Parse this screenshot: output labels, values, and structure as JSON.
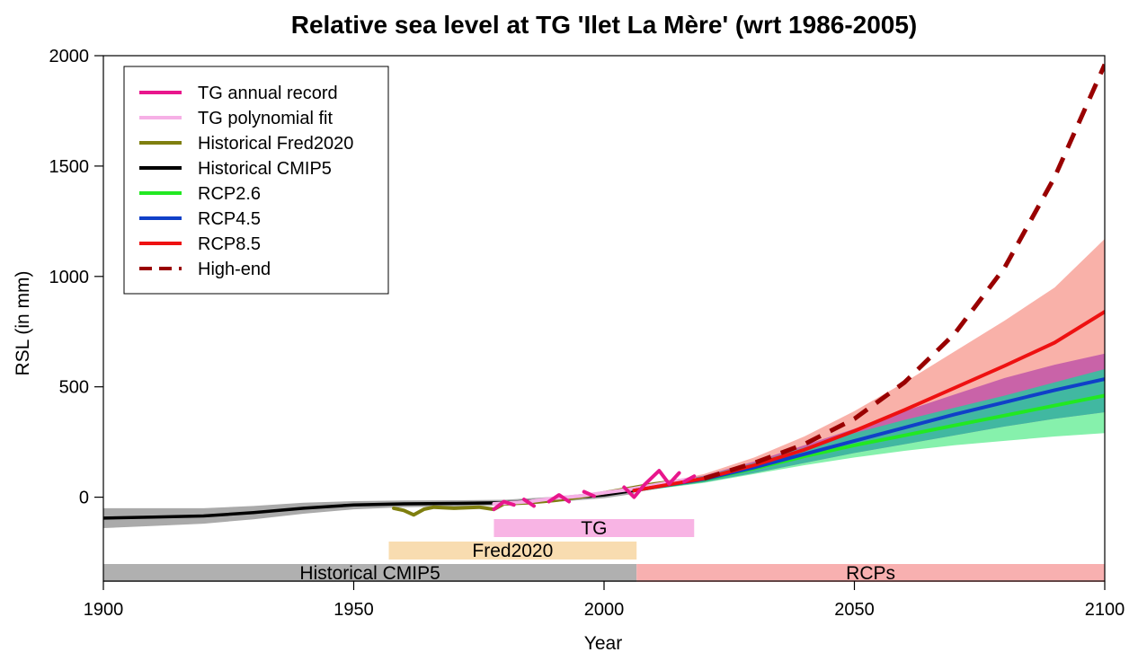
{
  "chart_data": {
    "type": "line",
    "title": "Relative sea level at TG 'Ilet La Mère' (wrt 1986-2005)",
    "xlabel": "Year",
    "ylabel": "RSL (in mm)",
    "xlim": [
      1900,
      2100
    ],
    "ylim": [
      -380,
      2000
    ],
    "x_ticks": [
      1900,
      1950,
      2000,
      2050,
      2100
    ],
    "y_ticks": [
      0,
      500,
      1000,
      1500,
      2000
    ],
    "legend_position": "top-left",
    "grid": false,
    "legend": [
      {
        "label": "TG annual record",
        "color": "#e8168c",
        "style": "solid"
      },
      {
        "label": "TG polynomial fit",
        "color": "#f6b0e6",
        "style": "solid"
      },
      {
        "label": "Historical Fred2020",
        "color": "#7f7f0f",
        "style": "solid"
      },
      {
        "label": "Historical CMIP5",
        "color": "#000000",
        "style": "solid"
      },
      {
        "label": "RCP2.6",
        "color": "#22e822",
        "style": "solid"
      },
      {
        "label": "RCP4.5",
        "color": "#1040c8",
        "style": "solid"
      },
      {
        "label": "RCP8.5",
        "color": "#ee1111",
        "style": "solid"
      },
      {
        "label": "High-end",
        "color": "#990000",
        "style": "dashed"
      }
    ],
    "series": [
      {
        "name": "Historical CMIP5",
        "x": [
          1900,
          1910,
          1920,
          1930,
          1940,
          1950,
          1960,
          1970,
          1980,
          1990,
          2000,
          2006
        ],
        "y": [
          -95,
          -90,
          -85,
          -70,
          -50,
          -35,
          -30,
          -28,
          -25,
          -10,
          10,
          30
        ],
        "band_lower": [
          -140,
          -130,
          -120,
          -100,
          -75,
          -55,
          -45,
          -42,
          -38,
          -22,
          -5,
          15
        ],
        "band_upper": [
          -50,
          -50,
          -50,
          -40,
          -25,
          -18,
          -15,
          -14,
          -12,
          2,
          25,
          45
        ]
      },
      {
        "name": "Historical Fred2020",
        "x": [
          1958,
          1960,
          1962,
          1964,
          1966,
          1970,
          1975,
          1978,
          1980,
          1985,
          1990,
          1995,
          2000,
          2005,
          2010,
          2015
        ],
        "y": [
          -50,
          -60,
          -80,
          -55,
          -45,
          -50,
          -45,
          -55,
          -30,
          -25,
          -15,
          0,
          20,
          40,
          60,
          75
        ]
      },
      {
        "name": "TG polynomial fit",
        "x": [
          1978,
          1985,
          1990,
          1995,
          2000,
          2005,
          2010,
          2015,
          2018
        ],
        "y": [
          -30,
          -20,
          -5,
          5,
          20,
          35,
          55,
          75,
          85
        ]
      },
      {
        "name": "TG annual record",
        "segments": [
          {
            "x": [
              1978,
              1980,
              1982
            ],
            "y": [
              -55,
              -20,
              -35
            ]
          },
          {
            "x": [
              1984,
              1986
            ],
            "y": [
              -10,
              -40
            ]
          },
          {
            "x": [
              1989,
              1991,
              1993
            ],
            "y": [
              -20,
              10,
              -20
            ]
          },
          {
            "x": [
              1996,
              1998
            ],
            "y": [
              25,
              5
            ]
          },
          {
            "x": [
              2004,
              2006,
              2008,
              2011,
              2013,
              2015
            ],
            "y": [
              45,
              0,
              55,
              120,
              60,
              110
            ]
          },
          {
            "x": [
              2016,
              2018
            ],
            "y": [
              70,
              95
            ]
          }
        ]
      },
      {
        "name": "RCP2.6",
        "x": [
          2006,
          2020,
          2030,
          2040,
          2050,
          2060,
          2070,
          2080,
          2090,
          2100
        ],
        "y": [
          30,
          80,
          130,
          185,
          235,
          280,
          325,
          370,
          415,
          460
        ],
        "band_lower": [
          25,
          65,
          105,
          145,
          180,
          210,
          235,
          255,
          275,
          290
        ],
        "band_upper": [
          40,
          95,
          155,
          225,
          290,
          350,
          405,
          460,
          520,
          580
        ]
      },
      {
        "name": "RCP4.5",
        "x": [
          2006,
          2020,
          2030,
          2040,
          2050,
          2060,
          2070,
          2080,
          2090,
          2100
        ],
        "y": [
          30,
          82,
          135,
          195,
          255,
          315,
          375,
          430,
          485,
          535
        ],
        "band_lower": [
          25,
          68,
          110,
          155,
          200,
          240,
          280,
          320,
          355,
          385
        ],
        "band_upper": [
          40,
          98,
          162,
          235,
          310,
          390,
          465,
          540,
          600,
          650
        ]
      },
      {
        "name": "RCP8.5",
        "x": [
          2006,
          2020,
          2030,
          2040,
          2050,
          2060,
          2070,
          2080,
          2090,
          2100
        ],
        "y": [
          30,
          85,
          145,
          215,
          300,
          395,
          495,
          595,
          700,
          840
        ],
        "band_lower": [
          25,
          70,
          115,
          165,
          225,
          290,
          355,
          420,
          490,
          560
        ],
        "band_upper": [
          40,
          105,
          180,
          275,
          390,
          520,
          660,
          800,
          950,
          1170
        ]
      },
      {
        "name": "High-end",
        "x": [
          2020,
          2030,
          2040,
          2050,
          2060,
          2070,
          2080,
          2090,
          2100
        ],
        "y": [
          85,
          155,
          240,
          355,
          520,
          740,
          1040,
          1450,
          1960
        ]
      }
    ],
    "band_colors": {
      "Historical CMIP5": "#aaaaaa",
      "RCP2.6": "#80f0a8",
      "RCP4.5": "#b84aa8",
      "RCP8.5": "#f8a8a0",
      "overlap": "#2ec4a0"
    },
    "periods": [
      {
        "label": "TG",
        "x_start": 1978,
        "x_end": 2018,
        "color": "#f8b4e4",
        "row": 1
      },
      {
        "label": "Fred2020",
        "x_start": 1957,
        "x_end": 2006.5,
        "color": "#f8dcb0",
        "row": 2
      },
      {
        "label": "Historical CMIP5",
        "x_start": 1900,
        "x_end": 2006.5,
        "color": "#b0b0b0",
        "row": 3
      },
      {
        "label": "RCPs",
        "x_start": 2006.5,
        "x_end": 2100,
        "color": "#f8b0b0",
        "row": 3
      }
    ]
  }
}
